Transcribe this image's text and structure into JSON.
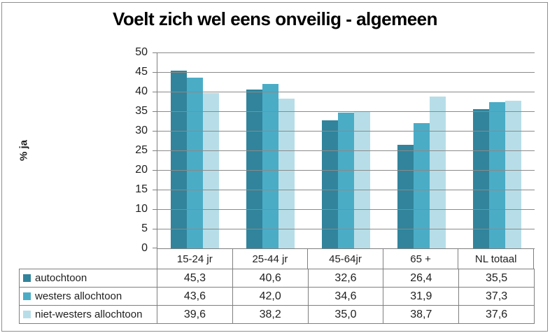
{
  "chart_data": {
    "type": "bar",
    "title": "Voelt zich wel eens onveilig - algemeen",
    "ylabel": "% ja",
    "categories": [
      "15-24 jr",
      "25-44 jr",
      "45-64jr",
      "65 +",
      "NL totaal"
    ],
    "series": [
      {
        "name": "autochtoon",
        "color": "#31849B",
        "values": [
          45.3,
          40.6,
          32.6,
          26.4,
          35.5
        ],
        "value_labels": [
          "45,3",
          "40,6",
          "32,6",
          "26,4",
          "35,5"
        ]
      },
      {
        "name": "westers allochtoon",
        "color": "#4BACC6",
        "values": [
          43.6,
          42.0,
          34.6,
          31.9,
          37.3
        ],
        "value_labels": [
          "43,6",
          "42,0",
          "34,6",
          "31,9",
          "37,3"
        ]
      },
      {
        "name": "niet-westers allochtoon",
        "color": "#B7DEE8",
        "values": [
          39.6,
          38.2,
          35.0,
          38.7,
          37.6
        ],
        "value_labels": [
          "39,6",
          "38,2",
          "35,0",
          "38,7",
          "37,6"
        ]
      }
    ],
    "ylim": [
      0,
      50
    ],
    "y_ticks": [
      0,
      5,
      10,
      15,
      20,
      25,
      30,
      35,
      40,
      45,
      50
    ],
    "grid": true,
    "legend_position": "table-left",
    "colors": {
      "gridline": "#8a8a8a",
      "axis": "#7f7f7f",
      "title_text": "#000000",
      "body_text": "#1f1f1f"
    }
  }
}
